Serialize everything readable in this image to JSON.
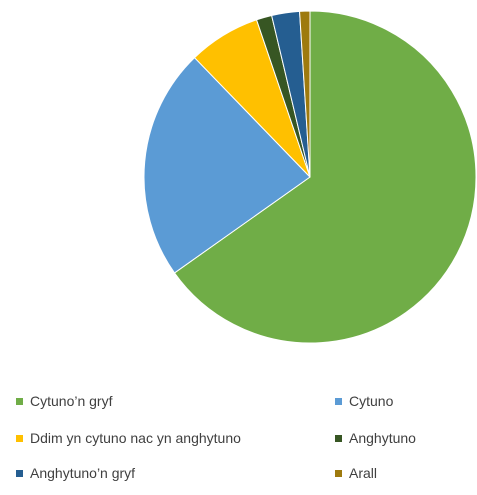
{
  "chart_data": {
    "type": "pie",
    "title": "",
    "start_angle_deg": 0,
    "direction": "clockwise",
    "slices": [
      {
        "label": "Cytuno’n gryf",
        "value": 65.0,
        "color": "#70ad47"
      },
      {
        "label": "Cytuno",
        "value": 22.5,
        "color": "#5b9bd5"
      },
      {
        "label": "Ddim yn cytuno nac yn anghytuno",
        "value": 7.0,
        "color": "#ffc000"
      },
      {
        "label": "Anghytuno",
        "value": 1.5,
        "color": "#375623"
      },
      {
        "label": "Anghytuno’n gryf",
        "value": 2.7,
        "color": "#255e91"
      },
      {
        "label": "Arall",
        "value": 1.0,
        "color": "#9e7a0e"
      }
    ],
    "legend": {
      "position": "bottom",
      "entries": [
        "Cytuno’n gryf",
        "Cytuno",
        "Ddim yn cytuno nac yn anghytuno",
        "Anghytuno",
        "Anghytuno’n gryf",
        "Arall"
      ]
    }
  }
}
